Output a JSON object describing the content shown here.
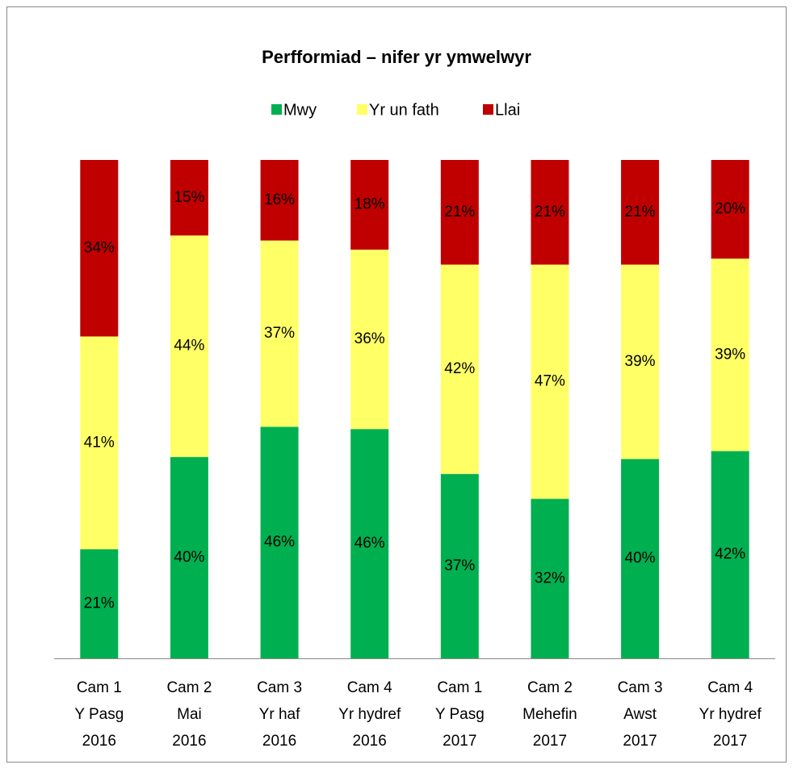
{
  "chart_data": {
    "type": "bar",
    "stacking": "percent",
    "title": "Perfformiad – nifer yr ymwelwyr",
    "categories": [
      [
        "Cam 1",
        "Y Pasg",
        "2016"
      ],
      [
        "Cam 2",
        "Mai",
        "2016"
      ],
      [
        "Cam 3",
        "Yr haf",
        "2016"
      ],
      [
        "Cam 4",
        "Yr hydref",
        "2016"
      ],
      [
        "Cam 1",
        "Y Pasg",
        "2017"
      ],
      [
        "Cam 2",
        "Mehefin",
        "2017"
      ],
      [
        "Cam 3",
        "Awst",
        "2017"
      ],
      [
        "Cam 4",
        "Yr hydref",
        "2017"
      ]
    ],
    "series": [
      {
        "name": "Mwy",
        "color": "#00b050",
        "values": [
          21,
          40,
          46,
          46,
          37,
          32,
          40,
          42
        ],
        "value_labels": [
          "21%",
          "40%",
          "46%",
          "46%",
          "37%",
          "32%",
          "40%",
          "42%"
        ]
      },
      {
        "name": "Yr un fath",
        "color": "#ffff66",
        "values": [
          41,
          44,
          37,
          36,
          42,
          47,
          39,
          39
        ],
        "value_labels": [
          "41%",
          "44%",
          "37%",
          "36%",
          "42%",
          "47%",
          "39%",
          "39%"
        ]
      },
      {
        "name": "Llai",
        "color": "#c00000",
        "values": [
          34,
          15,
          16,
          18,
          21,
          21,
          21,
          20
        ],
        "value_labels": [
          "34%",
          "15%",
          "16%",
          "18%",
          "21%",
          "21%",
          "21%",
          "20%"
        ]
      }
    ]
  }
}
